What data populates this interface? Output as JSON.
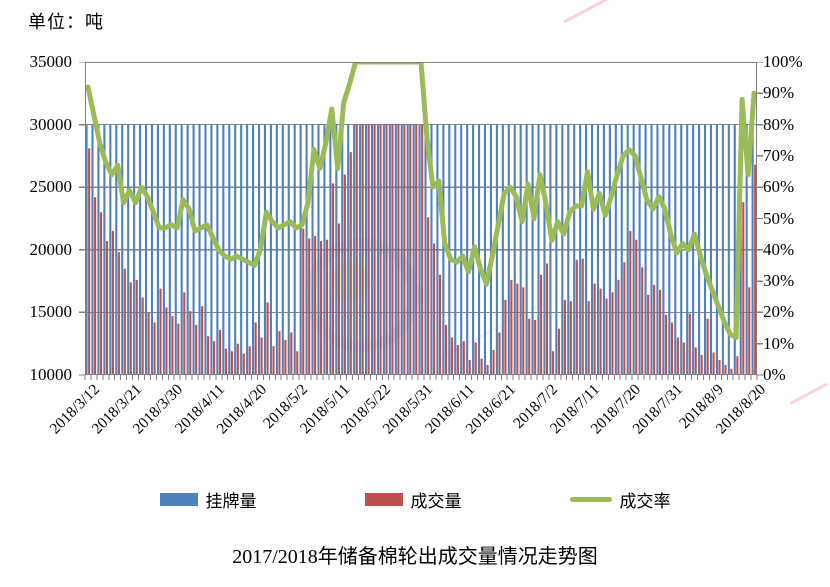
{
  "unit_label": "单位：吨",
  "chart_title": "2017/2018年储备棉轮出成交量情况走势图",
  "legend": {
    "listed_label": "挂牌量",
    "volume_label": "成交量",
    "rate_label": "成交率"
  },
  "colors": {
    "listed_bar": "#4F81BD",
    "volume_bar": "#C0504D",
    "rate_line": "#9BBB59",
    "gridline": "#848484",
    "axis": "#7f7f7f"
  },
  "chart_data": {
    "type": "bar",
    "subtype": "dual-axis bar + line combo",
    "title": "2017/2018年储备棉轮出成交量情况走势图",
    "left_axis": {
      "label": "单位：吨",
      "min": 10000,
      "max": 35000,
      "step": 5000,
      "ticks": [
        "35000",
        "30000",
        "25000",
        "20000",
        "15000",
        "10000"
      ]
    },
    "right_axis": {
      "min": 0,
      "max": 100,
      "step": 10,
      "ticks": [
        "100%",
        "90%",
        "80%",
        "70%",
        "60%",
        "50%",
        "40%",
        "30%",
        "20%",
        "10%",
        "0%"
      ]
    },
    "grid": true,
    "legend_position": "bottom",
    "x_tick_interval": 7,
    "x_tick_labels": [
      "2018/3/12",
      "2018/3/21",
      "2018/3/30",
      "2018/4/11",
      "2018/4/20",
      "2018/5/2",
      "2018/5/11",
      "2018/5/22",
      "2018/5/31",
      "2018/6/11",
      "2018/6/21",
      "2018/7/2",
      "2018/7/11",
      "2018/7/20",
      "2018/7/31",
      "2018/8/9",
      "2018/8/20"
    ],
    "series": [
      {
        "name": "挂牌量",
        "type": "bar",
        "axis": "left",
        "color": "#4F81BD",
        "values": [
          30000,
          30000,
          30000,
          30000,
          30000,
          30000,
          30000,
          30000,
          30000,
          30000,
          30000,
          30000,
          30000,
          30000,
          30000,
          30000,
          30000,
          30000,
          30000,
          30000,
          30000,
          30000,
          30000,
          30000,
          30000,
          30000,
          30000,
          30000,
          30000,
          30000,
          30000,
          30000,
          30000,
          30000,
          30000,
          30000,
          30000,
          30000,
          30000,
          30000,
          30000,
          30000,
          30000,
          30000,
          30000,
          30000,
          30000,
          30000,
          30000,
          30000,
          30000,
          30000,
          30000,
          30000,
          30000,
          30000,
          30000,
          30000,
          30000,
          30000,
          30000,
          30000,
          30000,
          30000,
          30000,
          30000,
          30000,
          30000,
          30000,
          30000,
          30000,
          30000,
          30000,
          30000,
          30000,
          30000,
          30000,
          30000,
          30000,
          30000,
          30000,
          30000,
          30000,
          30000,
          30000,
          30000,
          30000,
          30000,
          30000,
          30000,
          30000,
          30000,
          30000,
          30000,
          30000,
          30000,
          30000,
          30000,
          30000,
          30000,
          30000,
          30000,
          30000,
          30000,
          30000,
          30000,
          30000,
          30000,
          30000,
          30000,
          30000,
          30000,
          30000
        ]
      },
      {
        "name": "成交量",
        "type": "bar",
        "axis": "left",
        "color": "#C0504D",
        "values": [
          28100,
          24200,
          23000,
          20700,
          21500,
          19800,
          18500,
          17400,
          17600,
          16200,
          15000,
          14200,
          16900,
          15400,
          14700,
          14100,
          16600,
          15100,
          14000,
          15500,
          13100,
          12700,
          13600,
          12100,
          11900,
          12500,
          11700,
          12300,
          14200,
          13000,
          15800,
          12300,
          13500,
          12800,
          13400,
          11900,
          21700,
          20900,
          21100,
          20700,
          20800,
          25300,
          22100,
          26000,
          27800,
          30000,
          30000,
          30000,
          30000,
          30000,
          30000,
          30000,
          30000,
          30000,
          30000,
          30000,
          30000,
          22600,
          20500,
          18000,
          14000,
          13000,
          12400,
          12700,
          11200,
          12600,
          11300,
          10800,
          12000,
          13400,
          16000,
          17600,
          17300,
          17000,
          14500,
          14400,
          18000,
          18900,
          11900,
          13700,
          16000,
          15900,
          19200,
          19300,
          15900,
          17300,
          16900,
          16100,
          16600,
          17600,
          19000,
          21500,
          20800,
          18600,
          16400,
          17200,
          16800,
          14800,
          14200,
          13000,
          12600,
          14900,
          12200,
          11600,
          14500,
          11800,
          11200,
          10800,
          10500,
          11500,
          23800,
          17000,
          26800
        ]
      },
      {
        "name": "成交率",
        "type": "line",
        "axis": "right",
        "color": "#9BBB59",
        "values": [
          92,
          83,
          74,
          68,
          64,
          67,
          55,
          59,
          55,
          60,
          57,
          52,
          47,
          47,
          48,
          47,
          56,
          53,
          46,
          47,
          48,
          44,
          40,
          38,
          37,
          38,
          37,
          36,
          35,
          40,
          52,
          49,
          47,
          48,
          49,
          47,
          48,
          55,
          72,
          66,
          74,
          85,
          66,
          87,
          93,
          100,
          100,
          100,
          100,
          100,
          100,
          100,
          100,
          100,
          100,
          100,
          100,
          76,
          60,
          62,
          42,
          37,
          36,
          38,
          33,
          41,
          34,
          29,
          38,
          48,
          58,
          60,
          57,
          49,
          61,
          50,
          64,
          55,
          43,
          49,
          45,
          52,
          54,
          54,
          65,
          53,
          58,
          51,
          57,
          64,
          70,
          72,
          70,
          63,
          56,
          53,
          57,
          53,
          45,
          39,
          42,
          40,
          45,
          38,
          32,
          27,
          22,
          17,
          13,
          12,
          88,
          64,
          90
        ]
      }
    ]
  }
}
